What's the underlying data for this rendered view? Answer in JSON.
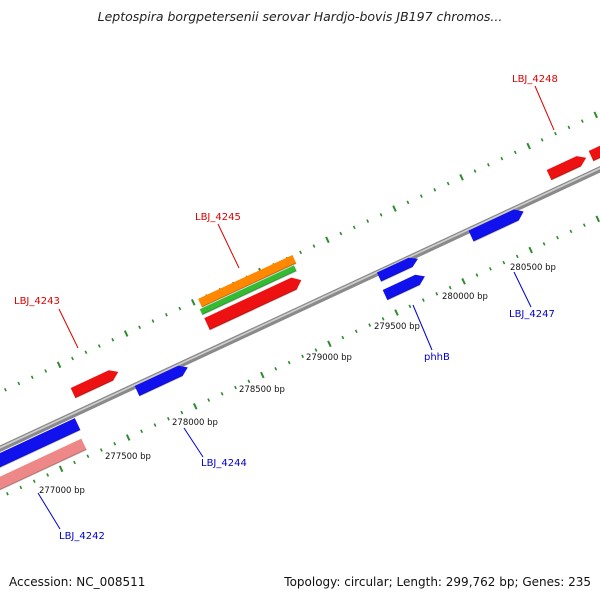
{
  "title": "Leptospira borgpetersenii serovar Hardjo-bovis JB197 chromos...",
  "footer": {
    "accession": "Accession: NC_008511",
    "summary": "Topology: circular; Length: 299,762 bp; Genes: 235"
  },
  "colors": {
    "backbone": "#8a8a8a",
    "backbone_highlight": "#cfcfcf",
    "tick": "#2e8b2e",
    "forward_label": "#dd0000",
    "reverse_label": "#0000cc"
  },
  "positions": {
    "ticks": [
      "277000 bp",
      "277500 bp",
      "278000 bp",
      "278500 bp",
      "279000 bp",
      "279500 bp",
      "280000 bp",
      "280500 bp"
    ]
  },
  "genes": {
    "forward": [
      "LBJ_4243",
      "LBJ_4245",
      "LBJ_4248"
    ],
    "reverse": [
      "LBJ_4242",
      "LBJ_4244",
      "phhB",
      "LBJ_4247"
    ]
  }
}
